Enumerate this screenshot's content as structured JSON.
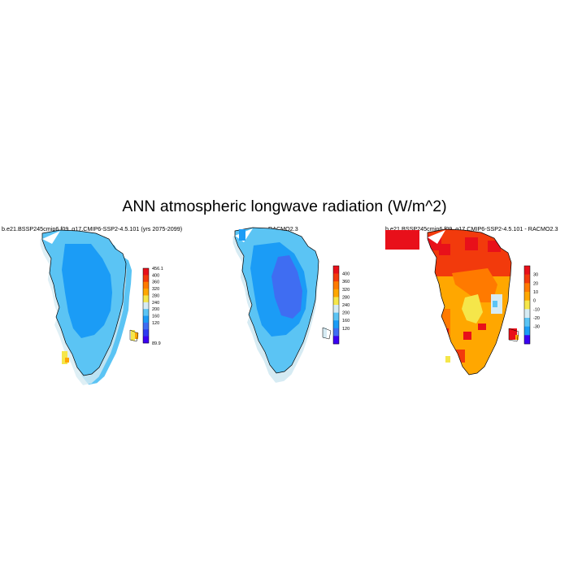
{
  "title": "ANN atmospheric longwave radiation (W/m^2)",
  "panels": [
    {
      "title": "b.e21.BSSP245cmip6.f09_g17.CMIP6-SSP2-4.5.101 (yrs 2075-2099)",
      "colorbar": {
        "labels": [
          "456.1",
          "400",
          "360",
          "320",
          "280",
          "240",
          "200",
          "160",
          "120",
          "89.9"
        ],
        "colors": [
          "#e8101a",
          "#f23a0c",
          "#ff7a00",
          "#ffa700",
          "#f5e64a",
          "#d6ebf3",
          "#5bc4f4",
          "#1b9cf6",
          "#3f6df2",
          "#2e3bf0",
          "#3b00f3"
        ]
      }
    },
    {
      "title": "RACMO2.3",
      "colorbar": {
        "labels": [
          "400",
          "360",
          "320",
          "280",
          "240",
          "200",
          "160",
          "120"
        ],
        "colors": [
          "#e8101a",
          "#f23a0c",
          "#ff7a00",
          "#ffa700",
          "#f5e64a",
          "#d6ebf3",
          "#5bc4f4",
          "#1b9cf6",
          "#3f6df2",
          "#3b00f3"
        ]
      }
    },
    {
      "title": "b.e21.BSSP245cmip6.f09_g17.CMIP6-SSP2-4.5.101 - RACMO2.3",
      "colorbar": {
        "labels": [
          "30",
          "20",
          "10",
          "0",
          "-10",
          "-20",
          "-30"
        ],
        "colors": [
          "#e8101a",
          "#f23a0c",
          "#ff7a00",
          "#ffa700",
          "#f5e64a",
          "#d6ebf3",
          "#5bc4f4",
          "#1b9cf6",
          "#3b00f3"
        ]
      }
    }
  ]
}
